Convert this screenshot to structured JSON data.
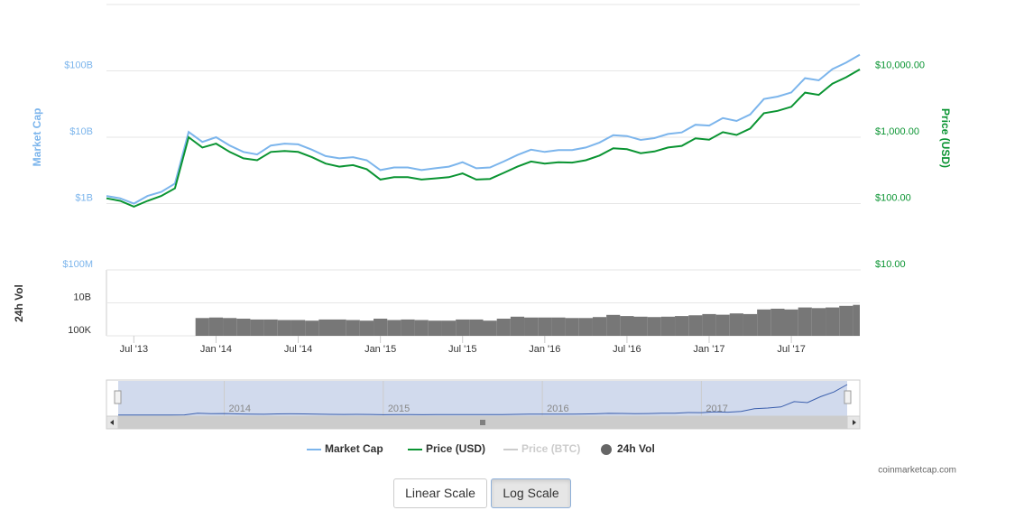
{
  "chart_data": {
    "type": "line",
    "log_scale": true,
    "x": [
      "2013-05",
      "2013-06",
      "2013-07",
      "2013-08",
      "2013-09",
      "2013-10",
      "2013-11",
      "2013-12",
      "2014-01",
      "2014-02",
      "2014-03",
      "2014-04",
      "2014-05",
      "2014-06",
      "2014-07",
      "2014-08",
      "2014-09",
      "2014-10",
      "2014-11",
      "2014-12",
      "2015-01",
      "2015-02",
      "2015-03",
      "2015-04",
      "2015-05",
      "2015-06",
      "2015-07",
      "2015-08",
      "2015-09",
      "2015-10",
      "2015-11",
      "2015-12",
      "2016-01",
      "2016-02",
      "2016-03",
      "2016-04",
      "2016-05",
      "2016-06",
      "2016-07",
      "2016-08",
      "2016-09",
      "2016-10",
      "2016-11",
      "2016-12",
      "2017-01",
      "2017-02",
      "2017-03",
      "2017-04",
      "2017-05",
      "2017-06",
      "2017-07",
      "2017-08",
      "2017-09",
      "2017-10",
      "2017-11",
      "2017-12"
    ],
    "xlim": [
      "2013-05",
      "2017-12"
    ],
    "xticks": [
      {
        "value": "2013-07",
        "label": "Jul '13"
      },
      {
        "value": "2014-01",
        "label": "Jan '14"
      },
      {
        "value": "2014-07",
        "label": "Jul '14"
      },
      {
        "value": "2015-01",
        "label": "Jan '15"
      },
      {
        "value": "2015-07",
        "label": "Jul '15"
      },
      {
        "value": "2016-01",
        "label": "Jan '16"
      },
      {
        "value": "2016-07",
        "label": "Jul '16"
      },
      {
        "value": "2017-01",
        "label": "Jan '17"
      },
      {
        "value": "2017-07",
        "label": "Jul '17"
      }
    ],
    "ylabel": "Market Cap",
    "ylim": [
      100000000.0,
      1000000000000.0
    ],
    "yticks": [
      {
        "value": 100000000.0,
        "label": "$100M"
      },
      {
        "value": 1000000000.0,
        "label": "$1B"
      },
      {
        "value": 10000000000.0,
        "label": "$10B"
      },
      {
        "value": 100000000000.0,
        "label": "$100B"
      }
    ],
    "y2label": "Price (USD)",
    "y2lim": [
      10,
      100000
    ],
    "y2ticks": [
      {
        "value": 10,
        "label": "$10.00"
      },
      {
        "value": 100,
        "label": "$100.00"
      },
      {
        "value": 1000,
        "label": "$1,000.00"
      },
      {
        "value": 10000,
        "label": "$10,000.00"
      }
    ],
    "volume_label": "24h Vol",
    "volume_lim": [
      100000.0,
      1000000000000000.0
    ],
    "volume_ticks": [
      {
        "value": 100000,
        "label": "100K"
      },
      {
        "value": 10000000000,
        "label": "10B"
      }
    ],
    "series": [
      {
        "name": "Market Cap",
        "color": "#7cb5ec",
        "values": [
          1300000000.0,
          1200000000.0,
          1000000000.0,
          1300000000.0,
          1500000000.0,
          2000000000.0,
          12000000000.0,
          8500000000.0,
          10000000000.0,
          7500000000.0,
          6000000000.0,
          5500000000.0,
          7500000000.0,
          8000000000.0,
          7800000000.0,
          6500000000.0,
          5200000000.0,
          4800000000.0,
          5000000000.0,
          4500000000.0,
          3200000000.0,
          3500000000.0,
          3500000000.0,
          3200000000.0,
          3400000000.0,
          3600000000.0,
          4200000000.0,
          3400000000.0,
          3500000000.0,
          4300000000.0,
          5400000000.0,
          6500000000.0,
          6000000000.0,
          6400000000.0,
          6400000000.0,
          7000000000.0,
          8300000000.0,
          10700000000.0,
          10400000000.0,
          9100000000.0,
          9700000000.0,
          11200000000.0,
          11800000000.0,
          15400000000.0,
          15000000000.0,
          19400000000.0,
          17600000000.0,
          22000000000.0,
          37600000000.0,
          41000000000.0,
          47300000000.0,
          77700000000.0,
          72000000000.0,
          106000000000.0,
          133000000000.0,
          175000000000.0
        ]
      },
      {
        "name": "Price (USD)",
        "color": "#0a9432",
        "axis": "y2",
        "values": [
          120,
          110,
          90,
          110,
          130,
          170,
          1000,
          700,
          800,
          600,
          480,
          450,
          600,
          620,
          600,
          500,
          400,
          360,
          380,
          330,
          230,
          250,
          250,
          230,
          240,
          250,
          285,
          230,
          235,
          290,
          360,
          430,
          400,
          420,
          415,
          450,
          530,
          680,
          660,
          575,
          610,
          700,
          740,
          960,
          920,
          1190,
          1080,
          1350,
          2300,
          2500,
          2875,
          4700,
          4340,
          6400,
          8000,
          10500
        ]
      },
      {
        "name": "Price (BTC)",
        "color": "#cccccc",
        "visible": false
      },
      {
        "name": "24h Vol",
        "color": "#777777",
        "axis": "volume",
        "type": "column",
        "values": [
          null,
          null,
          null,
          null,
          null,
          null,
          null,
          50000000.0,
          60000000.0,
          50000000.0,
          40000000.0,
          30000000.0,
          30000000.0,
          25000000.0,
          25000000.0,
          20000000.0,
          30000000.0,
          30000000.0,
          25000000.0,
          20000000.0,
          40000000.0,
          25000000.0,
          30000000.0,
          25000000.0,
          20000000.0,
          20000000.0,
          30000000.0,
          30000000.0,
          20000000.0,
          40000000.0,
          80000000.0,
          60000000.0,
          60000000.0,
          60000000.0,
          50000000.0,
          50000000.0,
          70000000.0,
          150000000.0,
          100000000.0,
          80000000.0,
          70000000.0,
          80000000.0,
          100000000.0,
          130000000.0,
          200000000.0,
          160000000.0,
          250000000.0,
          200000000.0,
          1000000000.0,
          1300000000.0,
          1000000000.0,
          2000000000.0,
          1600000000.0,
          2000000000.0,
          3500000000.0,
          5000000000.0
        ]
      }
    ],
    "navigator": {
      "ticks": [
        {
          "value": "2014-01",
          "label": "2014"
        },
        {
          "value": "2015-01",
          "label": "2015"
        },
        {
          "value": "2016-01",
          "label": "2016"
        },
        {
          "value": "2017-01",
          "label": "2017"
        }
      ]
    },
    "credits": "coinmarketcap.com"
  },
  "buttons": [
    "Linear Scale",
    "Log Scale"
  ],
  "active_button": 1
}
